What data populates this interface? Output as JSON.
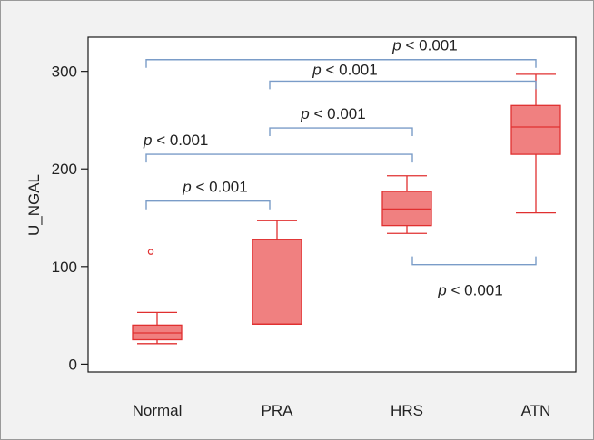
{
  "chart_data": {
    "type": "box",
    "categories": [
      "Normal",
      "PRA",
      "HRS",
      "ATN"
    ],
    "xlabel": "",
    "ylabel": "U_NGAL",
    "ylim": [
      -8,
      335
    ],
    "yticks": [
      0,
      100,
      200,
      300
    ],
    "grid": false,
    "legend": "none",
    "box_color": "#f08080",
    "box_edge_color": "#e03030",
    "bracket_color": "#7a9cc8",
    "outer_background": "#f2f2f2",
    "plot_background": "#ffffff",
    "boxes": [
      {
        "category": "Normal",
        "whisker_low": 21,
        "q1": 25,
        "median": 32,
        "q3": 40,
        "whisker_high": 53,
        "outliers": [
          115
        ]
      },
      {
        "category": "PRA",
        "whisker_low": 41,
        "q1": 41,
        "median": 41,
        "q3": 128,
        "whisker_high": 147,
        "outliers": []
      },
      {
        "category": "HRS",
        "whisker_low": 134,
        "q1": 142,
        "median": 159,
        "q3": 177,
        "whisker_high": 193,
        "outliers": []
      },
      {
        "category": "ATN",
        "whisker_low": 155,
        "q1": 215,
        "median": 243,
        "q3": 265,
        "whisker_high": 297,
        "outliers": []
      }
    ],
    "comparisons": [
      {
        "from": "Normal",
        "to": "PRA",
        "y": 167,
        "direction": "down",
        "label": "p < 0.001"
      },
      {
        "from": "Normal",
        "to": "HRS",
        "y": 215,
        "direction": "down",
        "label": "p < 0.001"
      },
      {
        "from": "PRA",
        "to": "HRS",
        "y": 242,
        "direction": "down",
        "label": "p < 0.001"
      },
      {
        "from": "PRA",
        "to": "ATN",
        "y": 290,
        "direction": "down",
        "label": "p < 0.001"
      },
      {
        "from": "Normal",
        "to": "ATN",
        "y": 312,
        "direction": "down",
        "label": "p < 0.001"
      },
      {
        "from": "HRS",
        "to": "ATN",
        "y": 102,
        "direction": "up",
        "label": "p < 0.001"
      }
    ]
  }
}
